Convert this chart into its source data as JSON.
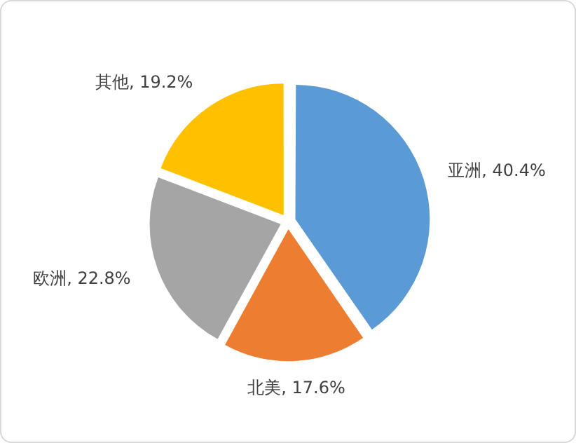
{
  "chart_data": {
    "type": "pie",
    "categories": [
      "亚洲",
      "北美",
      "欧洲",
      "其他"
    ],
    "values": [
      40.4,
      17.6,
      22.8,
      19.2
    ],
    "value_labels": [
      "40.4%",
      "17.6%",
      "22.8%",
      "19.2%"
    ],
    "colors": [
      "#5b9bd5",
      "#ed7d31",
      "#a5a5a5",
      "#ffc000"
    ],
    "legend": false
  }
}
